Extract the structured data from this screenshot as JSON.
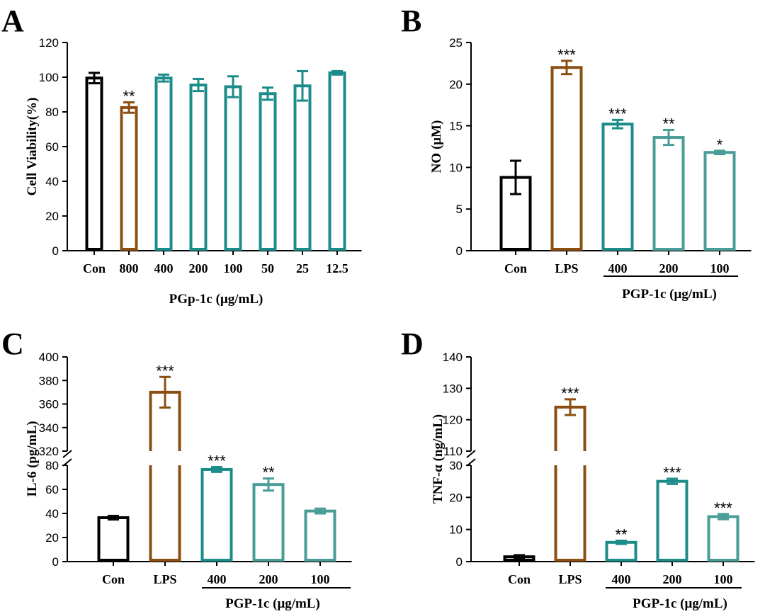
{
  "colors": {
    "black": "#000000",
    "brown": "#8B4F12",
    "teal": "#1B8C8A",
    "teal_light": "#4A9C97"
  },
  "chart_data": [
    {
      "panel": "A",
      "type": "bar",
      "categories": [
        "Con",
        "800",
        "400",
        "200",
        "100",
        "50",
        "25",
        "12.5"
      ],
      "values": [
        99.5,
        82.5,
        99.5,
        95.5,
        94.5,
        90.5,
        95,
        102.5
      ],
      "errors": [
        3,
        3,
        2,
        3.5,
        6,
        3.5,
        8.5,
        1
      ],
      "significance": [
        "",
        "**",
        "",
        "",
        "",
        "",
        "",
        ""
      ],
      "bar_colors": [
        "black",
        "brown",
        "teal",
        "teal",
        "teal",
        "teal",
        "teal",
        "teal"
      ],
      "ylabel": "Cell Viability(%)",
      "xlabel": "PGp-1c (μg/mL)",
      "ylim": [
        0,
        120
      ],
      "yticks": [
        0,
        20,
        40,
        60,
        80,
        100,
        120
      ]
    },
    {
      "panel": "B",
      "type": "bar",
      "categories": [
        "Con",
        "LPS",
        "400",
        "200",
        "100"
      ],
      "values": [
        8.8,
        22.0,
        15.2,
        13.6,
        11.8
      ],
      "errors": [
        2.0,
        0.8,
        0.5,
        0.9,
        0.2
      ],
      "significance": [
        "",
        "***",
        "***",
        "**",
        "*"
      ],
      "bar_colors": [
        "black",
        "brown",
        "teal",
        "teal_light",
        "teal_light"
      ],
      "ylabel": "NO (μM)",
      "xlabel": "PGP-1c (μg/mL)",
      "ylim": [
        0,
        25
      ],
      "yticks": [
        0,
        5,
        10,
        15,
        20,
        25
      ]
    },
    {
      "panel": "C",
      "type": "bar",
      "categories": [
        "Con",
        "LPS",
        "400",
        "200",
        "100"
      ],
      "values": [
        36.5,
        370,
        76.5,
        64,
        42
      ],
      "errors": [
        1.5,
        13,
        2,
        5,
        2
      ],
      "significance": [
        "",
        "***",
        "***",
        "**",
        ""
      ],
      "bar_colors": [
        "black",
        "brown",
        "teal",
        "teal_light",
        "teal_light"
      ],
      "ylabel": "IL-6 (pg/mL)",
      "xlabel": "PGP-1c (μg/mL)",
      "broken_axis": {
        "lower": [
          0,
          80
        ],
        "upper": [
          320,
          400
        ]
      },
      "yticks_lower": [
        0,
        20,
        40,
        60,
        80
      ],
      "yticks_upper": [
        320,
        340,
        360,
        380,
        400
      ]
    },
    {
      "panel": "D",
      "type": "bar",
      "categories": [
        "Con",
        "LPS",
        "400",
        "200",
        "100"
      ],
      "values": [
        1.5,
        124,
        6,
        25,
        14
      ],
      "errors": [
        0.5,
        2.5,
        0.5,
        0.8,
        0.8
      ],
      "significance": [
        "",
        "***",
        "**",
        "***",
        "***"
      ],
      "bar_colors": [
        "black",
        "brown",
        "teal",
        "teal",
        "teal_light"
      ],
      "ylabel": "TNF-α (ng/mL)",
      "xlabel": "PGP-1c (μg/mL)",
      "broken_axis": {
        "lower": [
          0,
          30
        ],
        "upper": [
          110,
          140
        ]
      },
      "yticks_lower": [
        0,
        10,
        20,
        30
      ],
      "yticks_upper": [
        110,
        120,
        130,
        140
      ]
    }
  ]
}
